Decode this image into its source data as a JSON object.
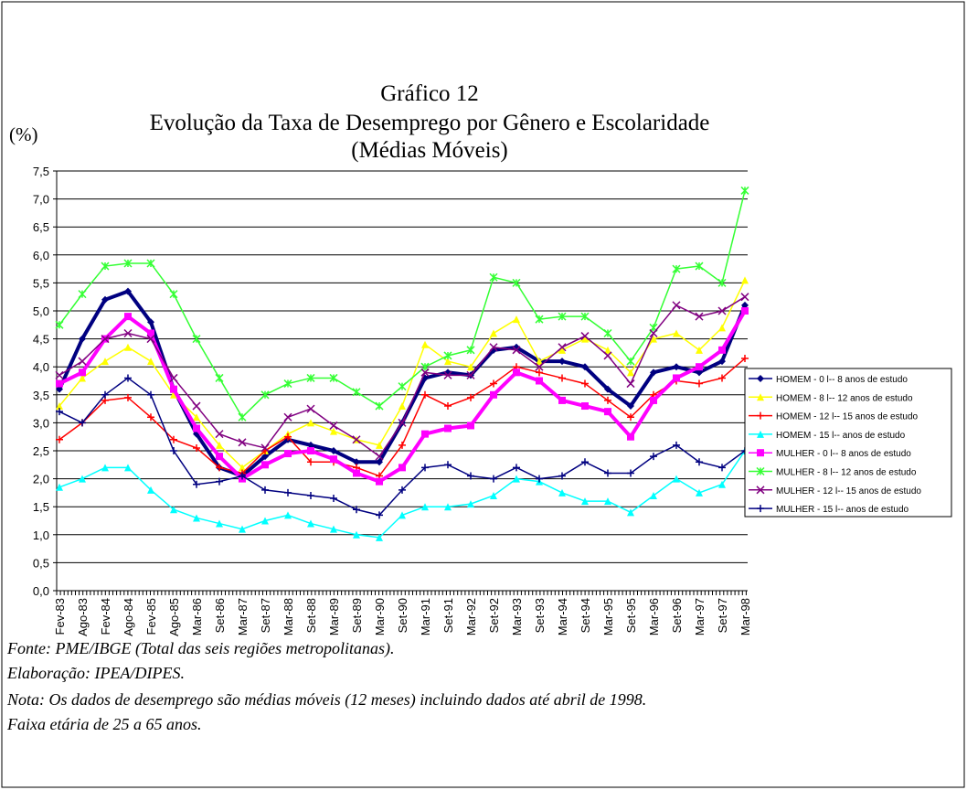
{
  "chart_data": {
    "type": "line",
    "title": "Gráfico 12",
    "subtitle": "Evolução da Taxa de Desemprego por Gênero e Escolaridade",
    "subtitle2": "(Médias Móveis)",
    "y_label": "(%)",
    "categories": [
      "Fev-83",
      "Ago-83",
      "Fev-84",
      "Ago-84",
      "Fev-85",
      "Ago-85",
      "Mar-86",
      "Set-86",
      "Mar-87",
      "Set-87",
      "Mar-88",
      "Set-88",
      "Mar-89",
      "Set-89",
      "Mar-90",
      "Set-90",
      "Mar-91",
      "Set-91",
      "Mar-92",
      "Set-92",
      "Mar-93",
      "Set-93",
      "Mar-94",
      "Set-94",
      "Mar-95",
      "Set-95",
      "Mar-96",
      "Set-96",
      "Mar-97",
      "Set-97",
      "Mar-98"
    ],
    "ylim": [
      0,
      7.5
    ],
    "yticks": [
      {
        "value": 0,
        "label": "0,0"
      },
      {
        "value": 0.5,
        "label": "0,5"
      },
      {
        "value": 1,
        "label": "1,0"
      },
      {
        "value": 1.5,
        "label": "1,5"
      },
      {
        "value": 2,
        "label": "2,0"
      },
      {
        "value": 2.5,
        "label": "2,5"
      },
      {
        "value": 3,
        "label": "3,0"
      },
      {
        "value": 3.5,
        "label": "3,5"
      },
      {
        "value": 4,
        "label": "4,0"
      },
      {
        "value": 4.5,
        "label": "4,5"
      },
      {
        "value": 5,
        "label": "5,0"
      },
      {
        "value": 5.5,
        "label": "5,5"
      },
      {
        "value": 6,
        "label": "6,0"
      },
      {
        "value": 6.5,
        "label": "6,5"
      },
      {
        "value": 7,
        "label": "7,0"
      },
      {
        "value": 7.5,
        "label": "7,5"
      }
    ],
    "grid": true,
    "legend": "right",
    "series": [
      {
        "name": "HOMEM - 0 l-- 8 anos de estudo",
        "color": "#000080",
        "marker": "diamond",
        "values": [
          3.6,
          4.5,
          5.2,
          5.35,
          4.8,
          3.6,
          2.8,
          2.2,
          2.05,
          2.4,
          2.7,
          2.6,
          2.5,
          2.3,
          2.3,
          3.0,
          3.8,
          3.9,
          3.85,
          4.3,
          4.35,
          4.1,
          4.1,
          4.0,
          3.6,
          3.3,
          3.9,
          4.0,
          3.9,
          4.1,
          5.1
        ]
      },
      {
        "name": "HOMEM - 8 l-- 12 anos de estudo",
        "color": "#ffff00",
        "marker": "triangle",
        "values": [
          3.3,
          3.8,
          4.1,
          4.35,
          4.1,
          3.5,
          3.1,
          2.6,
          2.2,
          2.5,
          2.8,
          3.0,
          2.85,
          2.7,
          2.6,
          3.3,
          4.4,
          4.1,
          4.0,
          4.6,
          4.85,
          4.1,
          4.3,
          4.5,
          4.3,
          3.9,
          4.5,
          4.6,
          4.3,
          4.7,
          5.55
        ]
      },
      {
        "name": "HOMEM - 12 l-- 15 anos de estudo",
        "color": "#ff0000",
        "marker": "plus",
        "values": [
          2.7,
          3.0,
          3.4,
          3.45,
          3.1,
          2.7,
          2.55,
          2.2,
          2.1,
          2.5,
          2.75,
          2.3,
          2.3,
          2.2,
          2.05,
          2.6,
          3.5,
          3.3,
          3.45,
          3.7,
          4.0,
          3.9,
          3.8,
          3.7,
          3.4,
          3.1,
          3.5,
          3.75,
          3.7,
          3.8,
          4.15
        ]
      },
      {
        "name": "HOMEM - 15 l-- anos de estudo",
        "color": "#00ffff",
        "marker": "triangle",
        "values": [
          1.85,
          2.0,
          2.2,
          2.2,
          1.8,
          1.45,
          1.3,
          1.2,
          1.1,
          1.25,
          1.35,
          1.2,
          1.1,
          1.0,
          0.95,
          1.35,
          1.5,
          1.5,
          1.55,
          1.7,
          2.0,
          1.95,
          1.75,
          1.6,
          1.6,
          1.4,
          1.7,
          2.0,
          1.75,
          1.9,
          2.5
        ]
      },
      {
        "name": "MULHER - 0 l-- 8 anos de estudo",
        "color": "#ff00ff",
        "marker": "square",
        "values": [
          3.7,
          3.9,
          4.5,
          4.9,
          4.6,
          3.6,
          2.9,
          2.4,
          2.0,
          2.25,
          2.45,
          2.5,
          2.35,
          2.1,
          1.95,
          2.2,
          2.8,
          2.9,
          2.95,
          3.5,
          3.9,
          3.75,
          3.4,
          3.3,
          3.2,
          2.75,
          3.4,
          3.8,
          4.0,
          4.3,
          5.0
        ]
      },
      {
        "name": "MULHER - 8 l-- 12 anos de estudo",
        "color": "#33ff33",
        "marker": "star",
        "values": [
          4.75,
          5.3,
          5.8,
          5.85,
          5.85,
          5.3,
          4.5,
          3.8,
          3.1,
          3.5,
          3.7,
          3.8,
          3.8,
          3.55,
          3.3,
          3.65,
          4.0,
          4.2,
          4.3,
          5.6,
          5.5,
          4.85,
          4.9,
          4.9,
          4.6,
          4.1,
          4.7,
          5.75,
          5.8,
          5.5,
          7.15
        ]
      },
      {
        "name": "MULHER - 12 l-- 15 anos de estudo",
        "color": "#800080",
        "marker": "cross",
        "values": [
          3.85,
          4.1,
          4.5,
          4.6,
          4.5,
          3.8,
          3.3,
          2.8,
          2.65,
          2.55,
          3.1,
          3.25,
          2.95,
          2.7,
          2.4,
          3.0,
          3.9,
          3.85,
          3.85,
          4.35,
          4.3,
          4.0,
          4.35,
          4.55,
          4.2,
          3.7,
          4.6,
          5.1,
          4.9,
          5.0,
          5.25
        ]
      },
      {
        "name": "MULHER - 15 l-- anos de estudo",
        "color": "#000080",
        "marker": "plus",
        "values": [
          3.2,
          3.0,
          3.5,
          3.8,
          3.5,
          2.5,
          1.9,
          1.95,
          2.05,
          1.8,
          1.75,
          1.7,
          1.65,
          1.45,
          1.35,
          1.8,
          2.2,
          2.25,
          2.05,
          2.0,
          2.2,
          2.0,
          2.05,
          2.3,
          2.1,
          2.1,
          2.4,
          2.6,
          2.3,
          2.2,
          2.5
        ]
      }
    ],
    "notes": [
      "Fonte: PME/IBGE (Total das seis regiões metropolitanas).",
      "Elaboração: IPEA/DIPES.",
      "Nota: Os dados de desemprego são médias móveis (12 meses) incluindo dados até abril de 1998.",
      "Faixa etária de 25 a 65 anos."
    ]
  }
}
